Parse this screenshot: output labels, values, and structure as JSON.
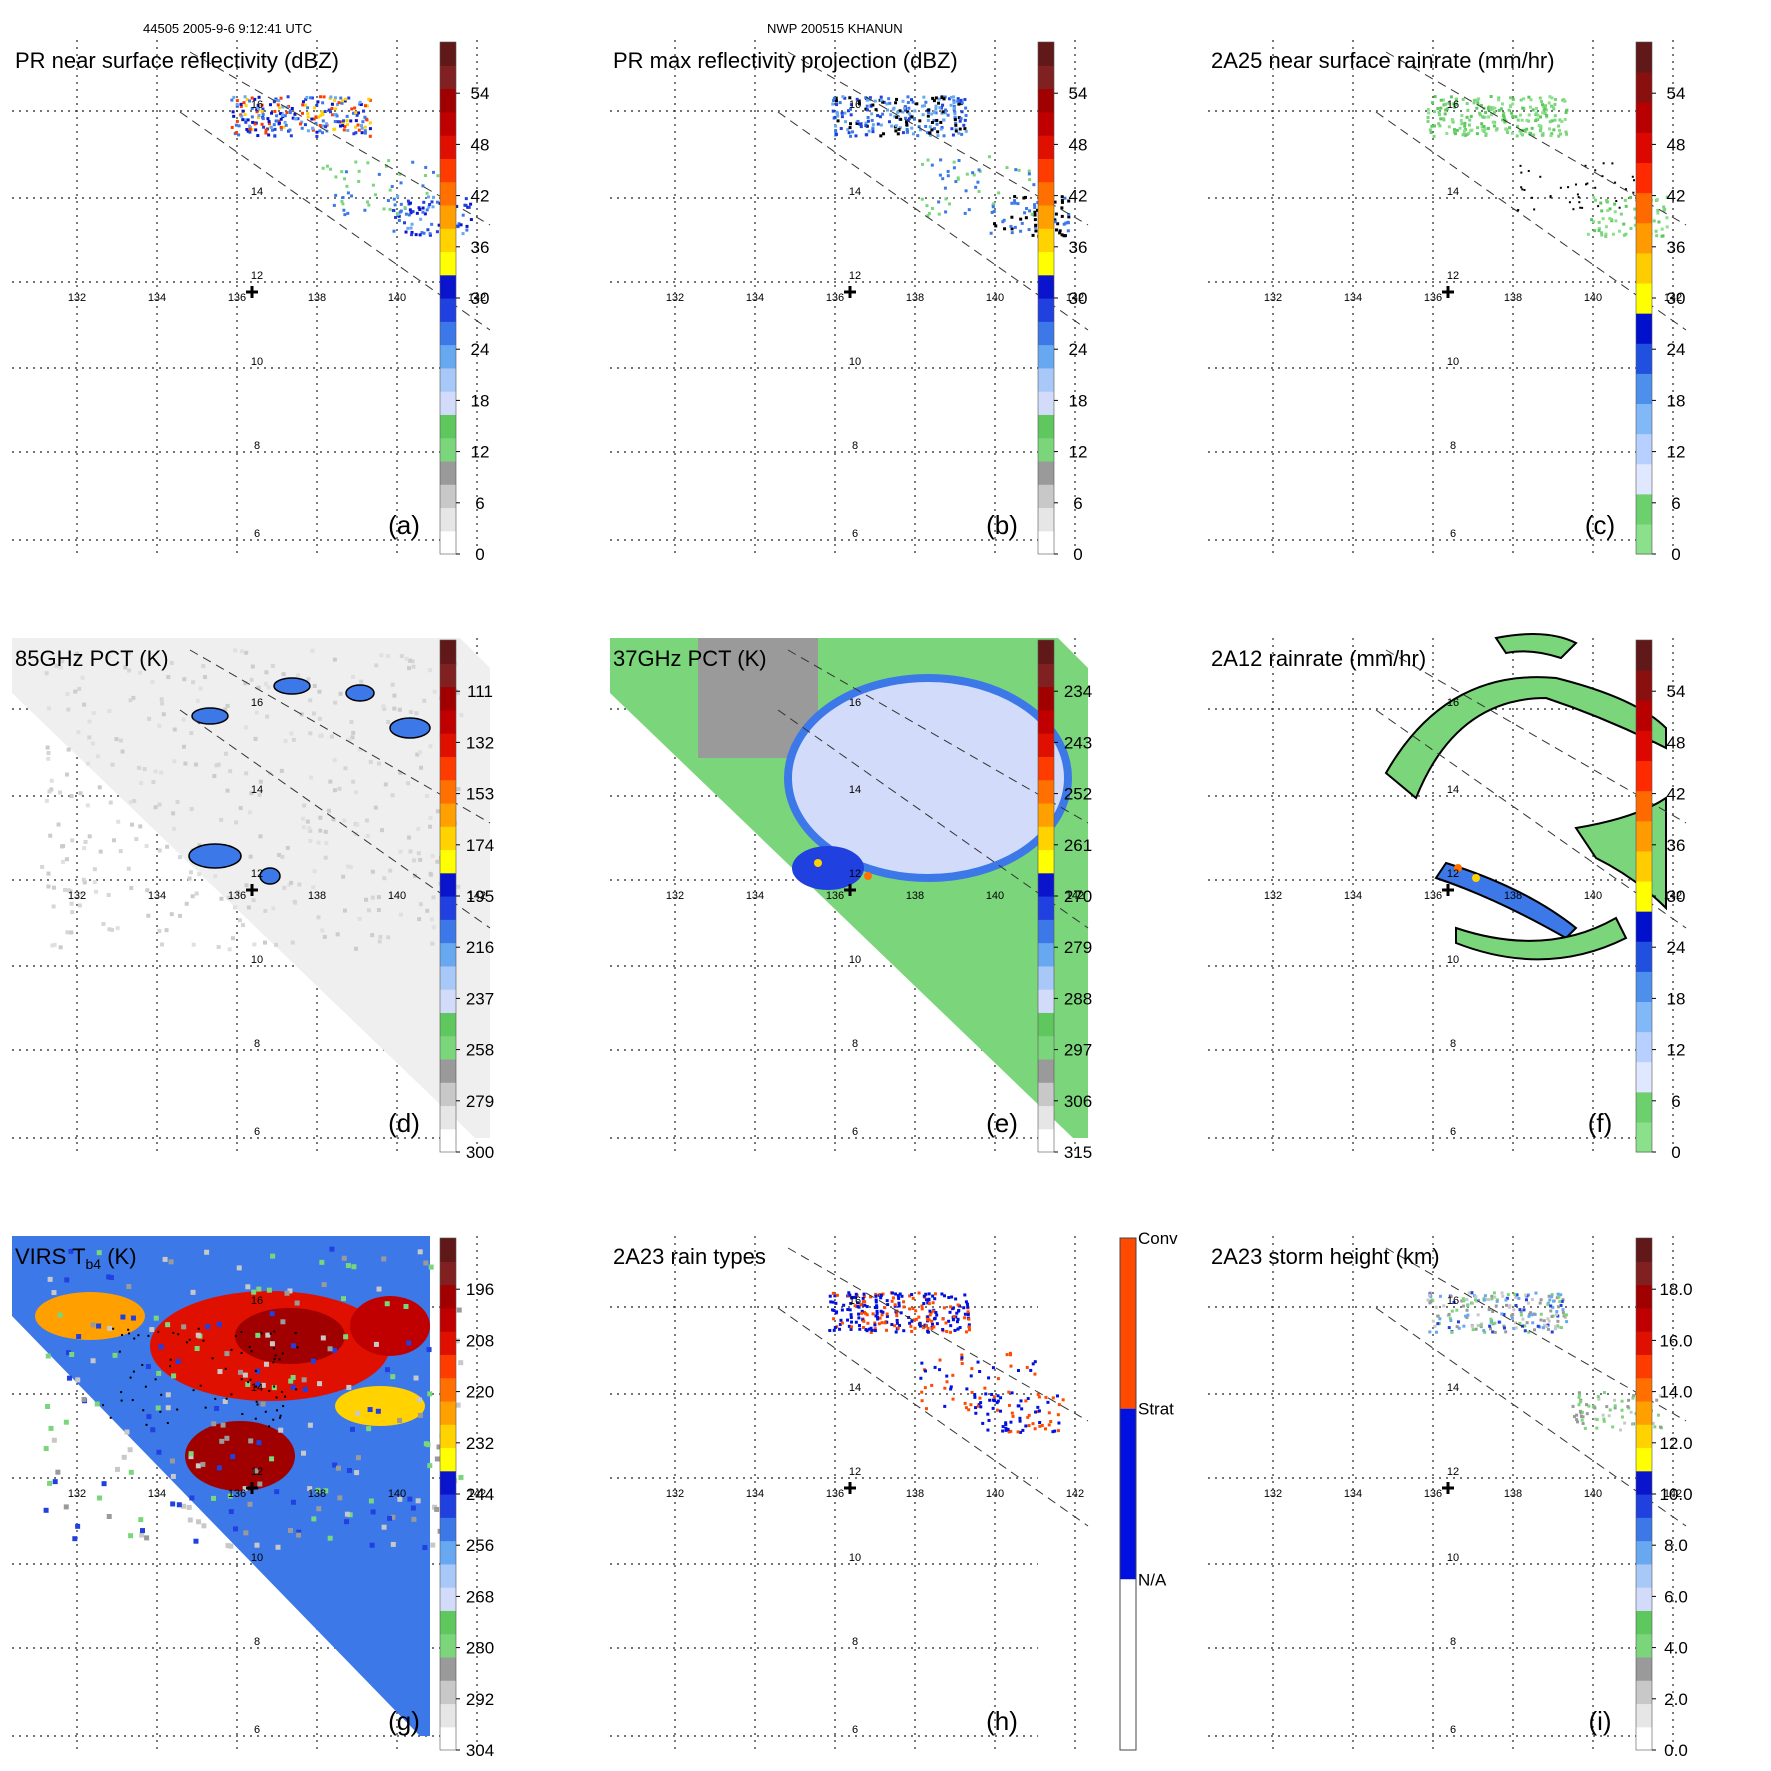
{
  "header": {
    "left": "44505 2005-9-6 9:12:41 UTC",
    "center": "NWP 200515 KHANUN"
  },
  "grid": {
    "lon_labels": [
      "132",
      "134",
      "136",
      "138",
      "140",
      "142"
    ],
    "lat_labels": [
      "6",
      "8",
      "10",
      "12",
      "14",
      "16"
    ]
  },
  "chart_data": [
    {
      "type": "heatmap",
      "panel": "(a)",
      "title": "PR near surface reflectivity (dBZ)",
      "colorbar": {
        "ticks": [
          "0",
          "6",
          "12",
          "18",
          "24",
          "30",
          "36",
          "42",
          "48",
          "54"
        ]
      },
      "field": "pr_near",
      "swath": "pr"
    },
    {
      "type": "heatmap",
      "panel": "(b)",
      "title": "PR max reflectivity projection (dBZ)",
      "colorbar": {
        "ticks": [
          "0",
          "6",
          "12",
          "18",
          "24",
          "30",
          "36",
          "42",
          "48",
          "54"
        ]
      },
      "field": "pr_max",
      "swath": "pr"
    },
    {
      "type": "heatmap",
      "panel": "(c)",
      "title": "2A25 near surface rainrate (mm/hr)",
      "colorbar": {
        "ticks": [
          "0",
          "6",
          "12",
          "18",
          "24",
          "30",
          "36",
          "42",
          "48",
          "54"
        ]
      },
      "field": "rain25",
      "swath": "pr"
    },
    {
      "type": "heatmap",
      "panel": "(d)",
      "title": "85GHz PCT (K)",
      "colorbar": {
        "ticks": [
          "300",
          "279",
          "258",
          "237",
          "216",
          "195",
          "174",
          "153",
          "132",
          "111"
        ]
      },
      "field": "pct85",
      "swath": "tmi"
    },
    {
      "type": "heatmap",
      "panel": "(e)",
      "title": "37GHz PCT (K)",
      "colorbar": {
        "ticks": [
          "315",
          "306",
          "297",
          "288",
          "279",
          "270",
          "261",
          "252",
          "243",
          "234"
        ]
      },
      "field": "pct37",
      "swath": "tmi"
    },
    {
      "type": "heatmap",
      "panel": "(f)",
      "title": "2A12 rainrate (mm/hr)",
      "colorbar": {
        "ticks": [
          "0",
          "6",
          "12",
          "18",
          "24",
          "30",
          "36",
          "42",
          "48",
          "54"
        ]
      },
      "field": "rain12",
      "swath": "tmi"
    },
    {
      "type": "heatmap",
      "panel": "(g)",
      "title": "VIRS T",
      "title_sub": "b4",
      "title_suffix": " (K)",
      "colorbar": {
        "ticks": [
          "304",
          "292",
          "280",
          "268",
          "256",
          "244",
          "232",
          "220",
          "208",
          "196"
        ]
      },
      "field": "virs",
      "swath": "virs"
    },
    {
      "type": "heatmap",
      "panel": "(h)",
      "title": "2A23 rain types",
      "colorbar": {
        "categories": [
          "N/A",
          "Strat",
          "Conv"
        ]
      },
      "field": "raintype",
      "swath": "pr"
    },
    {
      "type": "heatmap",
      "panel": "(i)",
      "title": "2A23 storm height (km)",
      "colorbar": {
        "ticks": [
          "0.0",
          "2.0",
          "4.0",
          "6.0",
          "8.0",
          "10.0",
          "12.0",
          "14.0",
          "16.0",
          "18.0"
        ]
      },
      "field": "height",
      "swath": "pr"
    }
  ]
}
